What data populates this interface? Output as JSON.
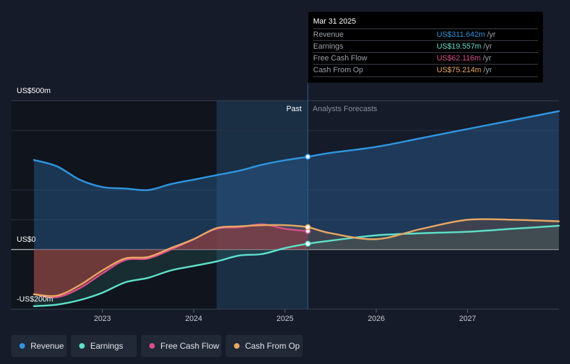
{
  "colors": {
    "revenue": "#2f95e0",
    "earnings": "#5ee0c9",
    "fcf": "#d94f8a",
    "cfo": "#e8a763"
  },
  "tooltip": {
    "date": "Mar 31 2025",
    "rows": [
      {
        "name": "Revenue",
        "value": "US$311.642m",
        "unit": "/yr",
        "color": "#2f95e0"
      },
      {
        "name": "Earnings",
        "value": "US$19.557m",
        "unit": "/yr",
        "color": "#5ee0c9"
      },
      {
        "name": "Free Cash Flow",
        "value": "US$62.116m",
        "unit": "/yr",
        "color": "#d94f8a"
      },
      {
        "name": "Cash From Op",
        "value": "US$75.214m",
        "unit": "/yr",
        "color": "#e8a763"
      }
    ]
  },
  "legend": [
    {
      "label": "Revenue",
      "color": "#2f95e0"
    },
    {
      "label": "Earnings",
      "color": "#5ee0c9"
    },
    {
      "label": "Free Cash Flow",
      "color": "#d94f8a"
    },
    {
      "label": "Cash From Op",
      "color": "#e8a763"
    }
  ],
  "chart_data": {
    "type": "line",
    "title": "",
    "xlabel": "",
    "ylabel": "",
    "y_unit": "US$ m",
    "ylim": [
      -200,
      500
    ],
    "y_tick_labels": [
      "US$500m",
      "US$0",
      "-US$200m"
    ],
    "x_tick_labels": [
      "2023",
      "2024",
      "2025",
      "2026",
      "2027"
    ],
    "x_ticks": [
      2023,
      2024,
      2025,
      2026,
      2027
    ],
    "xlim": [
      2022.0,
      2028.0
    ],
    "past_label": "Past",
    "forecast_label": "Analysts Forecasts",
    "divider_x": 2025.25,
    "series": [
      {
        "name": "Revenue",
        "x": [
          2022.25,
          2022.5,
          2022.75,
          2023.0,
          2023.25,
          2023.5,
          2023.75,
          2024.0,
          2024.25,
          2024.5,
          2024.75,
          2025.0,
          2025.25,
          2025.5,
          2026.0,
          2026.5,
          2027.0,
          2027.5,
          2028.0
        ],
        "values": [
          301,
          280,
          235,
          210,
          205,
          200,
          220,
          235,
          250,
          265,
          285,
          300,
          312,
          325,
          345,
          375,
          405,
          435,
          465
        ]
      },
      {
        "name": "Earnings",
        "x": [
          2022.25,
          2022.5,
          2022.75,
          2023.0,
          2023.25,
          2023.5,
          2023.75,
          2024.0,
          2024.25,
          2024.5,
          2024.75,
          2025.0,
          2025.25,
          2025.5,
          2026.0,
          2026.5,
          2027.0,
          2027.5,
          2028.0
        ],
        "values": [
          -190,
          -185,
          -170,
          -145,
          -110,
          -95,
          -70,
          -55,
          -40,
          -20,
          -15,
          5,
          19.6,
          30,
          48,
          55,
          60,
          70,
          80
        ]
      },
      {
        "name": "Free Cash Flow",
        "x": [
          2022.25,
          2022.5,
          2022.75,
          2023.0,
          2023.25,
          2023.5,
          2023.75,
          2024.0,
          2024.25,
          2024.5,
          2024.75,
          2025.0,
          2025.25
        ],
        "values": [
          -150,
          -160,
          -130,
          -80,
          -35,
          -30,
          0,
          35,
          70,
          75,
          85,
          70,
          62.1
        ]
      },
      {
        "name": "Cash From Op",
        "x": [
          2022.25,
          2022.5,
          2022.75,
          2023.0,
          2023.25,
          2023.5,
          2023.75,
          2024.0,
          2024.25,
          2024.5,
          2024.75,
          2025.0,
          2025.25,
          2025.5,
          2026.0,
          2026.5,
          2027.0,
          2027.5,
          2028.0
        ],
        "values": [
          -150,
          -155,
          -120,
          -70,
          -30,
          -25,
          5,
          35,
          72,
          78,
          82,
          82,
          75.2,
          55,
          35,
          70,
          100,
          100,
          95
        ]
      }
    ]
  }
}
